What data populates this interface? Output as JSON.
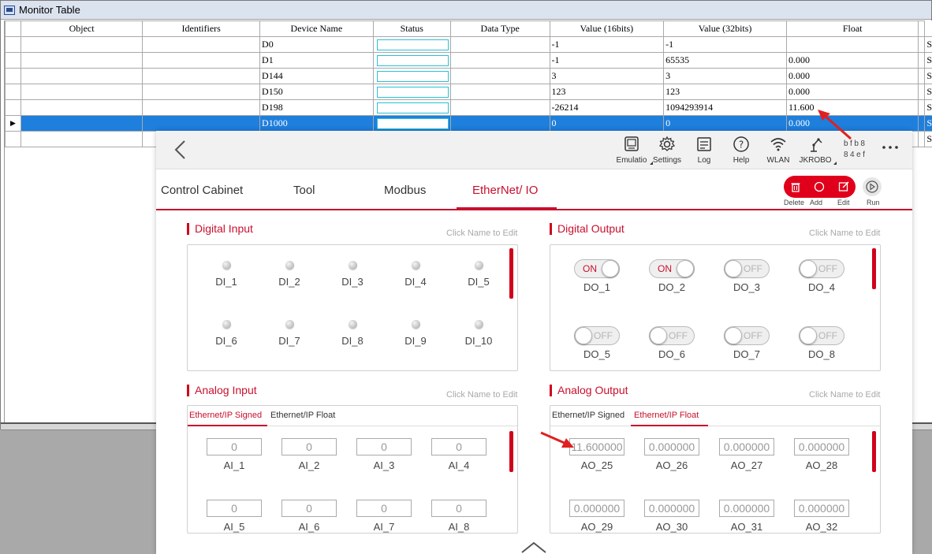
{
  "window": {
    "title": "Monitor Table"
  },
  "table": {
    "columns": [
      "Object",
      "Identifiers",
      "Device Name",
      "Status",
      "Data Type",
      "Value (16bits)",
      "Value (32bits)",
      "Float",
      ""
    ],
    "rows": [
      {
        "device": "D0",
        "v16": "-1",
        "v32": "-1",
        "float": "",
        "extra": "S"
      },
      {
        "device": "D1",
        "v16": "-1",
        "v32": "65535",
        "float": "0.000",
        "extra": "S"
      },
      {
        "device": "D144",
        "v16": "3",
        "v32": "3",
        "float": "0.000",
        "extra": "S"
      },
      {
        "device": "D150",
        "v16": "123",
        "v32": "123",
        "float": "0.000",
        "extra": "S"
      },
      {
        "device": "D198",
        "v16": "-26214",
        "v32": "1094293914",
        "float": "11.600",
        "extra": "S"
      },
      {
        "device": "D1000",
        "v16": "0",
        "v32": "0",
        "float": "0.000",
        "extra": "S"
      },
      {
        "device": "",
        "v16": "",
        "v32": "",
        "float": "",
        "extra": "S"
      }
    ],
    "selected_row_marker": "▶"
  },
  "toolbar": {
    "items": [
      {
        "label": "Emulatio",
        "icon": "emulation-icon"
      },
      {
        "label": "Settings",
        "icon": "gear-icon"
      },
      {
        "label": "Log",
        "icon": "log-icon"
      },
      {
        "label": "Help",
        "icon": "help-icon"
      },
      {
        "label": "WLAN",
        "icon": "wifi-icon"
      },
      {
        "label": "JKROBO",
        "icon": "robot-arm-icon"
      }
    ],
    "ip_line1": "bfb8",
    "ip_line2": "84ef",
    "more": "..."
  },
  "tabs": [
    "Control Cabinet",
    "Tool",
    "Modbus",
    "EtherNet/ IO"
  ],
  "active_tab": "EtherNet/ IO",
  "actions": {
    "delete": "Delete",
    "add": "Add",
    "edit": "Edit",
    "run": "Run"
  },
  "digital_input": {
    "title": "Digital Input",
    "hint": "Click Name to Edit",
    "items": [
      "DI_1",
      "DI_2",
      "DI_3",
      "DI_4",
      "DI_5",
      "DI_6",
      "DI_7",
      "DI_8",
      "DI_9",
      "DI_10"
    ]
  },
  "digital_output": {
    "title": "Digital Output",
    "hint": "Click Name to Edit",
    "on_text": "ON",
    "off_text": "OFF",
    "items": [
      {
        "name": "DO_1",
        "state": "ON"
      },
      {
        "name": "DO_2",
        "state": "ON"
      },
      {
        "name": "DO_3",
        "state": "OFF"
      },
      {
        "name": "DO_4",
        "state": "OFF"
      },
      {
        "name": "DO_5",
        "state": "OFF"
      },
      {
        "name": "DO_6",
        "state": "OFF"
      },
      {
        "name": "DO_7",
        "state": "OFF"
      },
      {
        "name": "DO_8",
        "state": "OFF"
      }
    ]
  },
  "analog_input": {
    "title": "Analog Input",
    "hint": "Click Name to Edit",
    "subtabs": [
      "Ethernet/IP Signed",
      "Ethernet/IP Float"
    ],
    "active_subtab": "Ethernet/IP Signed",
    "items": [
      {
        "name": "AI_1",
        "value": "0"
      },
      {
        "name": "AI_2",
        "value": "0"
      },
      {
        "name": "AI_3",
        "value": "0"
      },
      {
        "name": "AI_4",
        "value": "0"
      },
      {
        "name": "AI_5",
        "value": "0"
      },
      {
        "name": "AI_6",
        "value": "0"
      },
      {
        "name": "AI_7",
        "value": "0"
      },
      {
        "name": "AI_8",
        "value": "0"
      }
    ]
  },
  "analog_output": {
    "title": "Analog Output",
    "hint": "Click Name to Edit",
    "subtabs": [
      "Ethernet/IP Signed",
      "Ethernet/IP Float"
    ],
    "active_subtab": "Ethernet/IP Float",
    "items": [
      {
        "name": "AO_25",
        "value": "11.600000"
      },
      {
        "name": "AO_26",
        "value": "0.000000"
      },
      {
        "name": "AO_27",
        "value": "0.000000"
      },
      {
        "name": "AO_28",
        "value": "0.000000"
      },
      {
        "name": "AO_29",
        "value": "0.000000"
      },
      {
        "name": "AO_30",
        "value": "0.000000"
      },
      {
        "name": "AO_31",
        "value": "0.000000"
      },
      {
        "name": "AO_32",
        "value": "0.000000"
      }
    ]
  },
  "colors": {
    "accent": "#c8102e",
    "selected_row": "#1e7fdd",
    "annotation_arrow": "#e02020"
  }
}
